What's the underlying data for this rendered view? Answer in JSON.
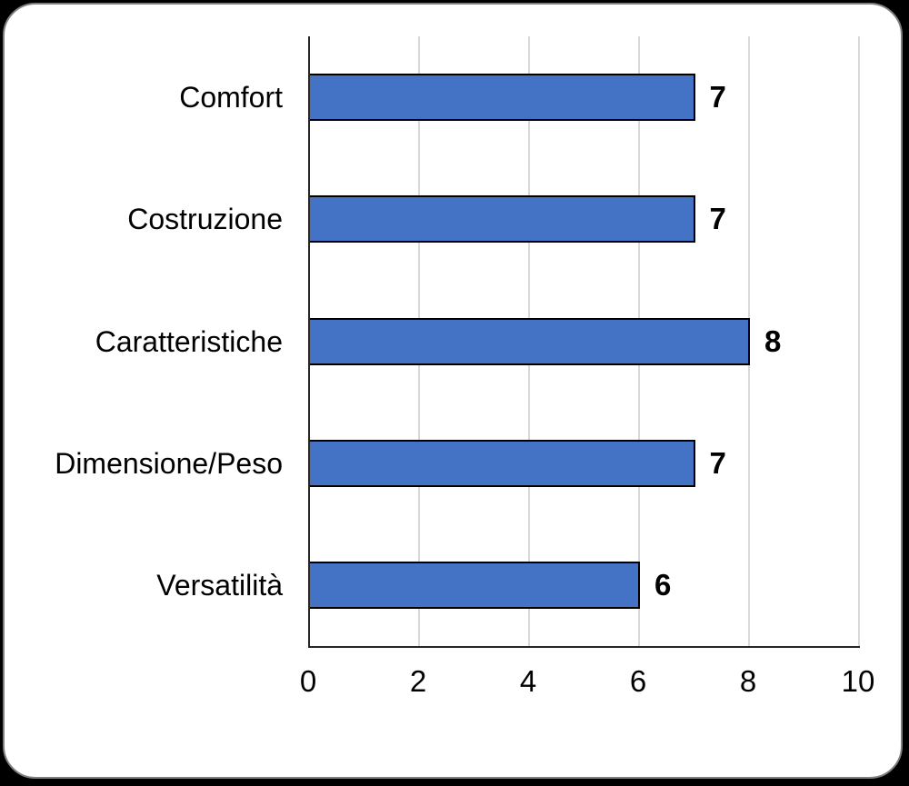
{
  "canvas": {
    "background_color": "#000000",
    "card_background_color": "#FFFFFF",
    "card_border_color": "#7F7F7F"
  },
  "chart_data": {
    "type": "bar",
    "orientation": "horizontal",
    "title": "",
    "categories": [
      "Comfort",
      "Costruzione",
      "Caratteristiche",
      "Dimensione/Peso",
      "Versatilità"
    ],
    "values": [
      7,
      7,
      8,
      7,
      6
    ],
    "data_labels": [
      "7",
      "7",
      "8",
      "7",
      "6"
    ],
    "xlim": [
      0,
      10
    ],
    "x_ticks": [
      "0",
      "2",
      "4",
      "6",
      "8",
      "10"
    ],
    "x_tick_values": [
      0,
      2,
      4,
      6,
      8,
      10
    ],
    "grid": "vertical",
    "legend": "none",
    "bar_color": "#4472C4",
    "bar_border_color": "#000000",
    "gridline_color": "#D9D9D9",
    "axis_line_color": "#262626",
    "text_color": "#000000"
  }
}
